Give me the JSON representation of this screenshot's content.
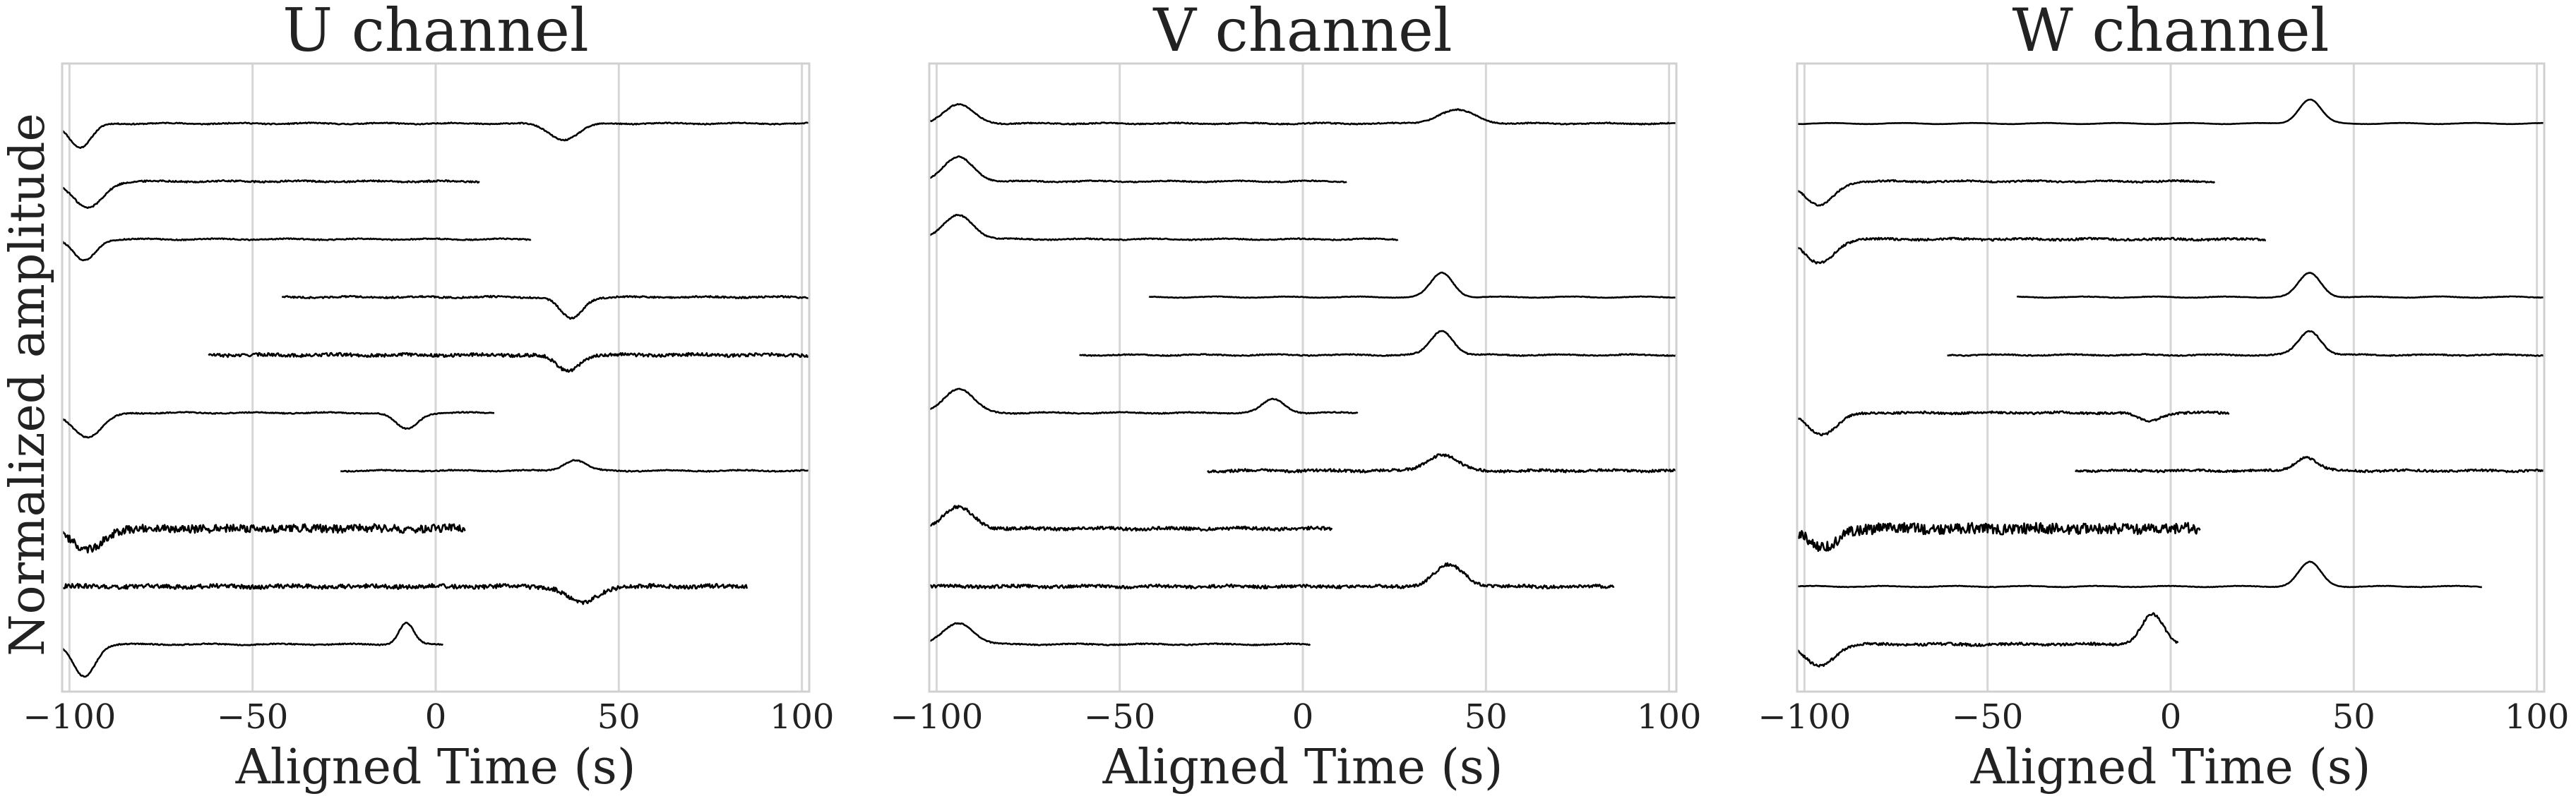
{
  "chart_data": [
    {
      "type": "line",
      "title": "U channel",
      "xlabel": "Aligned Time (s)",
      "ylabel": "Normalized amplitude",
      "xlim": [
        -102,
        102
      ],
      "xticks": [
        -100,
        -50,
        0,
        50,
        100
      ],
      "xtick_labels": [
        "−100",
        "−50",
        "0",
        "50",
        "100"
      ],
      "grid": true,
      "traces": [
        {
          "start": -102,
          "end": 102,
          "events": [
            {
              "t": -97,
              "amp": -0.9,
              "w": 3
            },
            {
              "t": 35,
              "amp": -0.6,
              "w": 4
            }
          ],
          "noise": 0.02
        },
        {
          "start": -102,
          "end": 12,
          "events": [
            {
              "t": -95,
              "amp": -1.0,
              "w": 4
            }
          ],
          "noise": 0.03
        },
        {
          "start": -102,
          "end": 26,
          "events": [
            {
              "t": -96,
              "amp": -0.8,
              "w": 3
            }
          ],
          "noise": 0.02
        },
        {
          "start": -42,
          "end": 102,
          "events": [
            {
              "t": 37,
              "amp": -0.8,
              "w": 3
            }
          ],
          "noise": 0.03
        },
        {
          "start": -62,
          "end": 102,
          "events": [
            {
              "t": 36,
              "amp": -0.6,
              "w": 3
            }
          ],
          "noise": 0.06
        },
        {
          "start": -102,
          "end": 16,
          "events": [
            {
              "t": -95,
              "amp": -0.9,
              "w": 4
            },
            {
              "t": -8,
              "amp": -0.6,
              "w": 3
            }
          ],
          "noise": 0.02
        },
        {
          "start": -26,
          "end": 102,
          "events": [
            {
              "t": 38,
              "amp": 0.4,
              "w": 3
            }
          ],
          "noise": 0.02
        },
        {
          "start": -102,
          "end": 8,
          "events": [
            {
              "t": -95,
              "amp": -0.8,
              "w": 4
            }
          ],
          "noise": 0.15
        },
        {
          "start": -102,
          "end": 85,
          "events": [
            {
              "t": 40,
              "amp": -0.6,
              "w": 4
            }
          ],
          "noise": 0.08
        },
        {
          "start": -102,
          "end": 2,
          "events": [
            {
              "t": -96,
              "amp": -1.2,
              "w": 3
            },
            {
              "t": -8,
              "amp": 0.8,
              "w": 2
            }
          ],
          "noise": 0.02
        }
      ]
    },
    {
      "type": "line",
      "title": "V channel",
      "xlabel": "Aligned Time (s)",
      "xlim": [
        -102,
        102
      ],
      "xticks": [
        -100,
        -50,
        0,
        50,
        100
      ],
      "xtick_labels": [
        "−100",
        "−50",
        "0",
        "50",
        "100"
      ],
      "grid": true,
      "traces": [
        {
          "start": -102,
          "end": 102,
          "events": [
            {
              "t": -94,
              "amp": 0.7,
              "w": 4
            },
            {
              "t": 42,
              "amp": 0.5,
              "w": 5
            }
          ],
          "noise": 0.02
        },
        {
          "start": -102,
          "end": 12,
          "events": [
            {
              "t": -94,
              "amp": 0.9,
              "w": 4
            }
          ],
          "noise": 0.02
        },
        {
          "start": -102,
          "end": 26,
          "events": [
            {
              "t": -94,
              "amp": 0.9,
              "w": 4
            }
          ],
          "noise": 0.02
        },
        {
          "start": -42,
          "end": 102,
          "events": [
            {
              "t": 38,
              "amp": 0.9,
              "w": 3
            }
          ],
          "noise": 0.01
        },
        {
          "start": -61,
          "end": 102,
          "events": [
            {
              "t": 38,
              "amp": 0.9,
              "w": 3
            }
          ],
          "noise": 0.02
        },
        {
          "start": -102,
          "end": 15,
          "events": [
            {
              "t": -94,
              "amp": 0.9,
              "w": 4
            },
            {
              "t": -8,
              "amp": 0.5,
              "w": 3
            }
          ],
          "noise": 0.02
        },
        {
          "start": -26,
          "end": 102,
          "events": [
            {
              "t": 38,
              "amp": 0.6,
              "w": 4
            }
          ],
          "noise": 0.05
        },
        {
          "start": -102,
          "end": 8,
          "events": [
            {
              "t": -94,
              "amp": 0.8,
              "w": 4
            }
          ],
          "noise": 0.06
        },
        {
          "start": -102,
          "end": 85,
          "events": [
            {
              "t": 40,
              "amp": 0.8,
              "w": 4
            }
          ],
          "noise": 0.06
        },
        {
          "start": -102,
          "end": 2,
          "events": [
            {
              "t": -94,
              "amp": 0.8,
              "w": 4
            }
          ],
          "noise": 0.02
        }
      ]
    },
    {
      "type": "line",
      "title": "W channel",
      "xlabel": "Aligned Time (s)",
      "xlim": [
        -102,
        102
      ],
      "xticks": [
        -100,
        -50,
        0,
        50,
        100
      ],
      "xtick_labels": [
        "−100",
        "−50",
        "0",
        "50",
        "100"
      ],
      "grid": true,
      "traces": [
        {
          "start": -102,
          "end": 102,
          "events": [
            {
              "t": 38,
              "amp": 0.9,
              "w": 3
            }
          ],
          "noise": 0.005
        },
        {
          "start": -102,
          "end": 12,
          "events": [
            {
              "t": -96,
              "amp": -0.9,
              "w": 4
            }
          ],
          "noise": 0.03
        },
        {
          "start": -102,
          "end": 26,
          "events": [
            {
              "t": -96,
              "amp": -0.9,
              "w": 4
            }
          ],
          "noise": 0.04
        },
        {
          "start": -42,
          "end": 102,
          "events": [
            {
              "t": 38,
              "amp": 0.9,
              "w": 3
            }
          ],
          "noise": 0.01
        },
        {
          "start": -61,
          "end": 102,
          "events": [
            {
              "t": 38,
              "amp": 0.9,
              "w": 3
            }
          ],
          "noise": 0.02
        },
        {
          "start": -102,
          "end": 16,
          "events": [
            {
              "t": -95,
              "amp": -0.8,
              "w": 4
            },
            {
              "t": -6,
              "amp": -0.3,
              "w": 3
            }
          ],
          "noise": 0.04
        },
        {
          "start": -26,
          "end": 102,
          "events": [
            {
              "t": 37,
              "amp": 0.5,
              "w": 3
            }
          ],
          "noise": 0.04
        },
        {
          "start": -102,
          "end": 8,
          "events": [
            {
              "t": -95,
              "amp": -0.7,
              "w": 4
            }
          ],
          "noise": 0.2
        },
        {
          "start": -102,
          "end": 85,
          "events": [
            {
              "t": 38,
              "amp": 0.9,
              "w": 3
            }
          ],
          "noise": 0.01
        },
        {
          "start": -102,
          "end": 2,
          "events": [
            {
              "t": -96,
              "amp": -0.8,
              "w": 4
            },
            {
              "t": -5,
              "amp": 1.1,
              "w": 3
            }
          ],
          "noise": 0.05
        }
      ]
    }
  ]
}
